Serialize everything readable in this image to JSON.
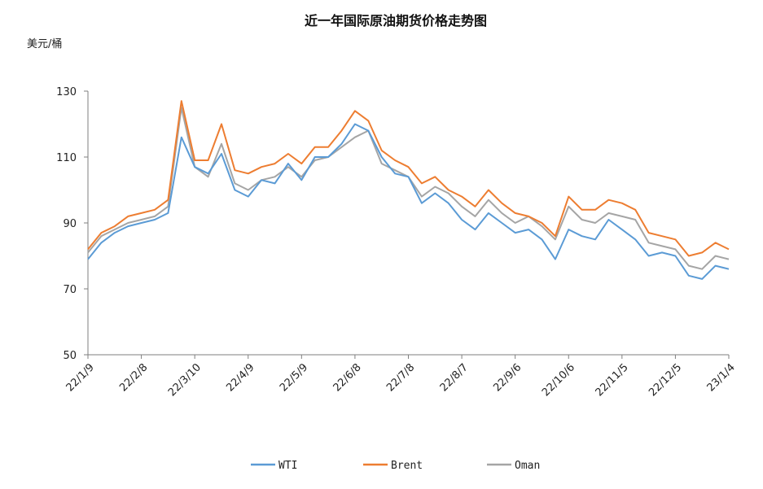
{
  "chart_data": {
    "type": "line",
    "title": "近一年国际原油期货价格走势图",
    "ylabel": "美元/桶",
    "xlabel": "",
    "ylim": [
      50,
      130
    ],
    "yticks": [
      50,
      70,
      90,
      110,
      130
    ],
    "x_ticks": [
      "22/1/9",
      "22/2/8",
      "22/3/10",
      "22/4/9",
      "22/5/9",
      "22/6/8",
      "22/7/8",
      "22/8/7",
      "22/9/6",
      "22/10/6",
      "22/11/5",
      "22/12/5",
      "23/1/4"
    ],
    "x": [
      "22/1/9",
      "22/1/17",
      "22/1/25",
      "22/2/2",
      "22/2/8",
      "22/2/16",
      "22/2/24",
      "22/3/4",
      "22/3/10",
      "22/3/18",
      "22/3/26",
      "22/4/3",
      "22/4/9",
      "22/4/17",
      "22/4/25",
      "22/5/3",
      "22/5/9",
      "22/5/17",
      "22/5/25",
      "22/6/2",
      "22/6/8",
      "22/6/16",
      "22/6/24",
      "22/7/2",
      "22/7/8",
      "22/7/16",
      "22/7/24",
      "22/8/1",
      "22/8/7",
      "22/8/15",
      "22/8/23",
      "22/8/31",
      "22/9/6",
      "22/9/14",
      "22/9/22",
      "22/9/30",
      "22/10/6",
      "22/10/14",
      "22/10/22",
      "22/10/30",
      "22/11/5",
      "22/11/13",
      "22/11/21",
      "22/11/29",
      "22/12/5",
      "22/12/13",
      "22/12/21",
      "22/12/29",
      "23/1/4"
    ],
    "legend_position": "bottom",
    "grid": false,
    "series": [
      {
        "name": "WTI",
        "color": "#5B9BD5",
        "values": [
          79,
          84,
          87,
          89,
          90,
          91,
          93,
          116,
          107,
          105,
          111,
          100,
          98,
          103,
          102,
          108,
          103,
          110,
          110,
          114,
          120,
          118,
          110,
          105,
          104,
          96,
          99,
          96,
          91,
          88,
          93,
          90,
          87,
          88,
          85,
          79,
          88,
          86,
          85,
          91,
          88,
          85,
          80,
          81,
          80,
          74,
          73,
          77,
          76
        ]
      },
      {
        "name": "Brent",
        "color": "#ED7D31",
        "values": [
          82,
          87,
          89,
          92,
          93,
          94,
          97,
          127,
          109,
          109,
          120,
          106,
          105,
          107,
          108,
          111,
          108,
          113,
          113,
          118,
          124,
          121,
          112,
          109,
          107,
          102,
          104,
          100,
          98,
          95,
          100,
          96,
          93,
          92,
          90,
          86,
          98,
          94,
          94,
          97,
          96,
          94,
          87,
          86,
          85,
          80,
          81,
          84,
          82
        ]
      },
      {
        "name": "Oman",
        "color": "#A5A5A5",
        "values": [
          81,
          86,
          88,
          90,
          91,
          92,
          95,
          125,
          107,
          104,
          114,
          102,
          100,
          103,
          104,
          107,
          104,
          109,
          110,
          113,
          116,
          118,
          108,
          106,
          104,
          98,
          101,
          99,
          95,
          92,
          97,
          93,
          90,
          92,
          89,
          85,
          95,
          91,
          90,
          93,
          92,
          91,
          84,
          83,
          82,
          77,
          76,
          80,
          79
        ]
      }
    ]
  }
}
